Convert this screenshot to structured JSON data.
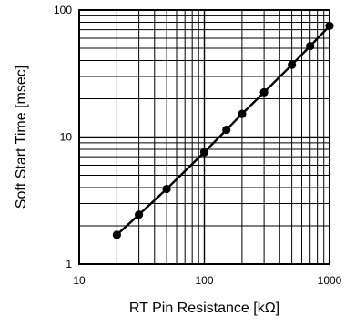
{
  "chart_data": {
    "type": "line",
    "title": "",
    "xlabel": "RT Pin Resistance [kΩ]",
    "ylabel": "Soft Start Time [msec]",
    "xscale": "log",
    "yscale": "log",
    "xlim": [
      10,
      1000
    ],
    "ylim": [
      1,
      100
    ],
    "grid": true,
    "legend": "none",
    "x_tick_labels": [
      "10",
      "100",
      "1000"
    ],
    "y_tick_labels": [
      "1",
      "10",
      "100"
    ],
    "series": [
      {
        "points": [
          [
            20,
            1.7
          ],
          [
            30,
            2.45
          ],
          [
            50,
            3.9
          ],
          [
            100,
            7.6
          ],
          [
            150,
            11.4
          ],
          [
            200,
            15.2
          ],
          [
            300,
            22.5
          ],
          [
            500,
            37
          ],
          [
            700,
            52
          ],
          [
            1000,
            75
          ]
        ],
        "color": "#000000",
        "marker": "circle"
      }
    ]
  }
}
